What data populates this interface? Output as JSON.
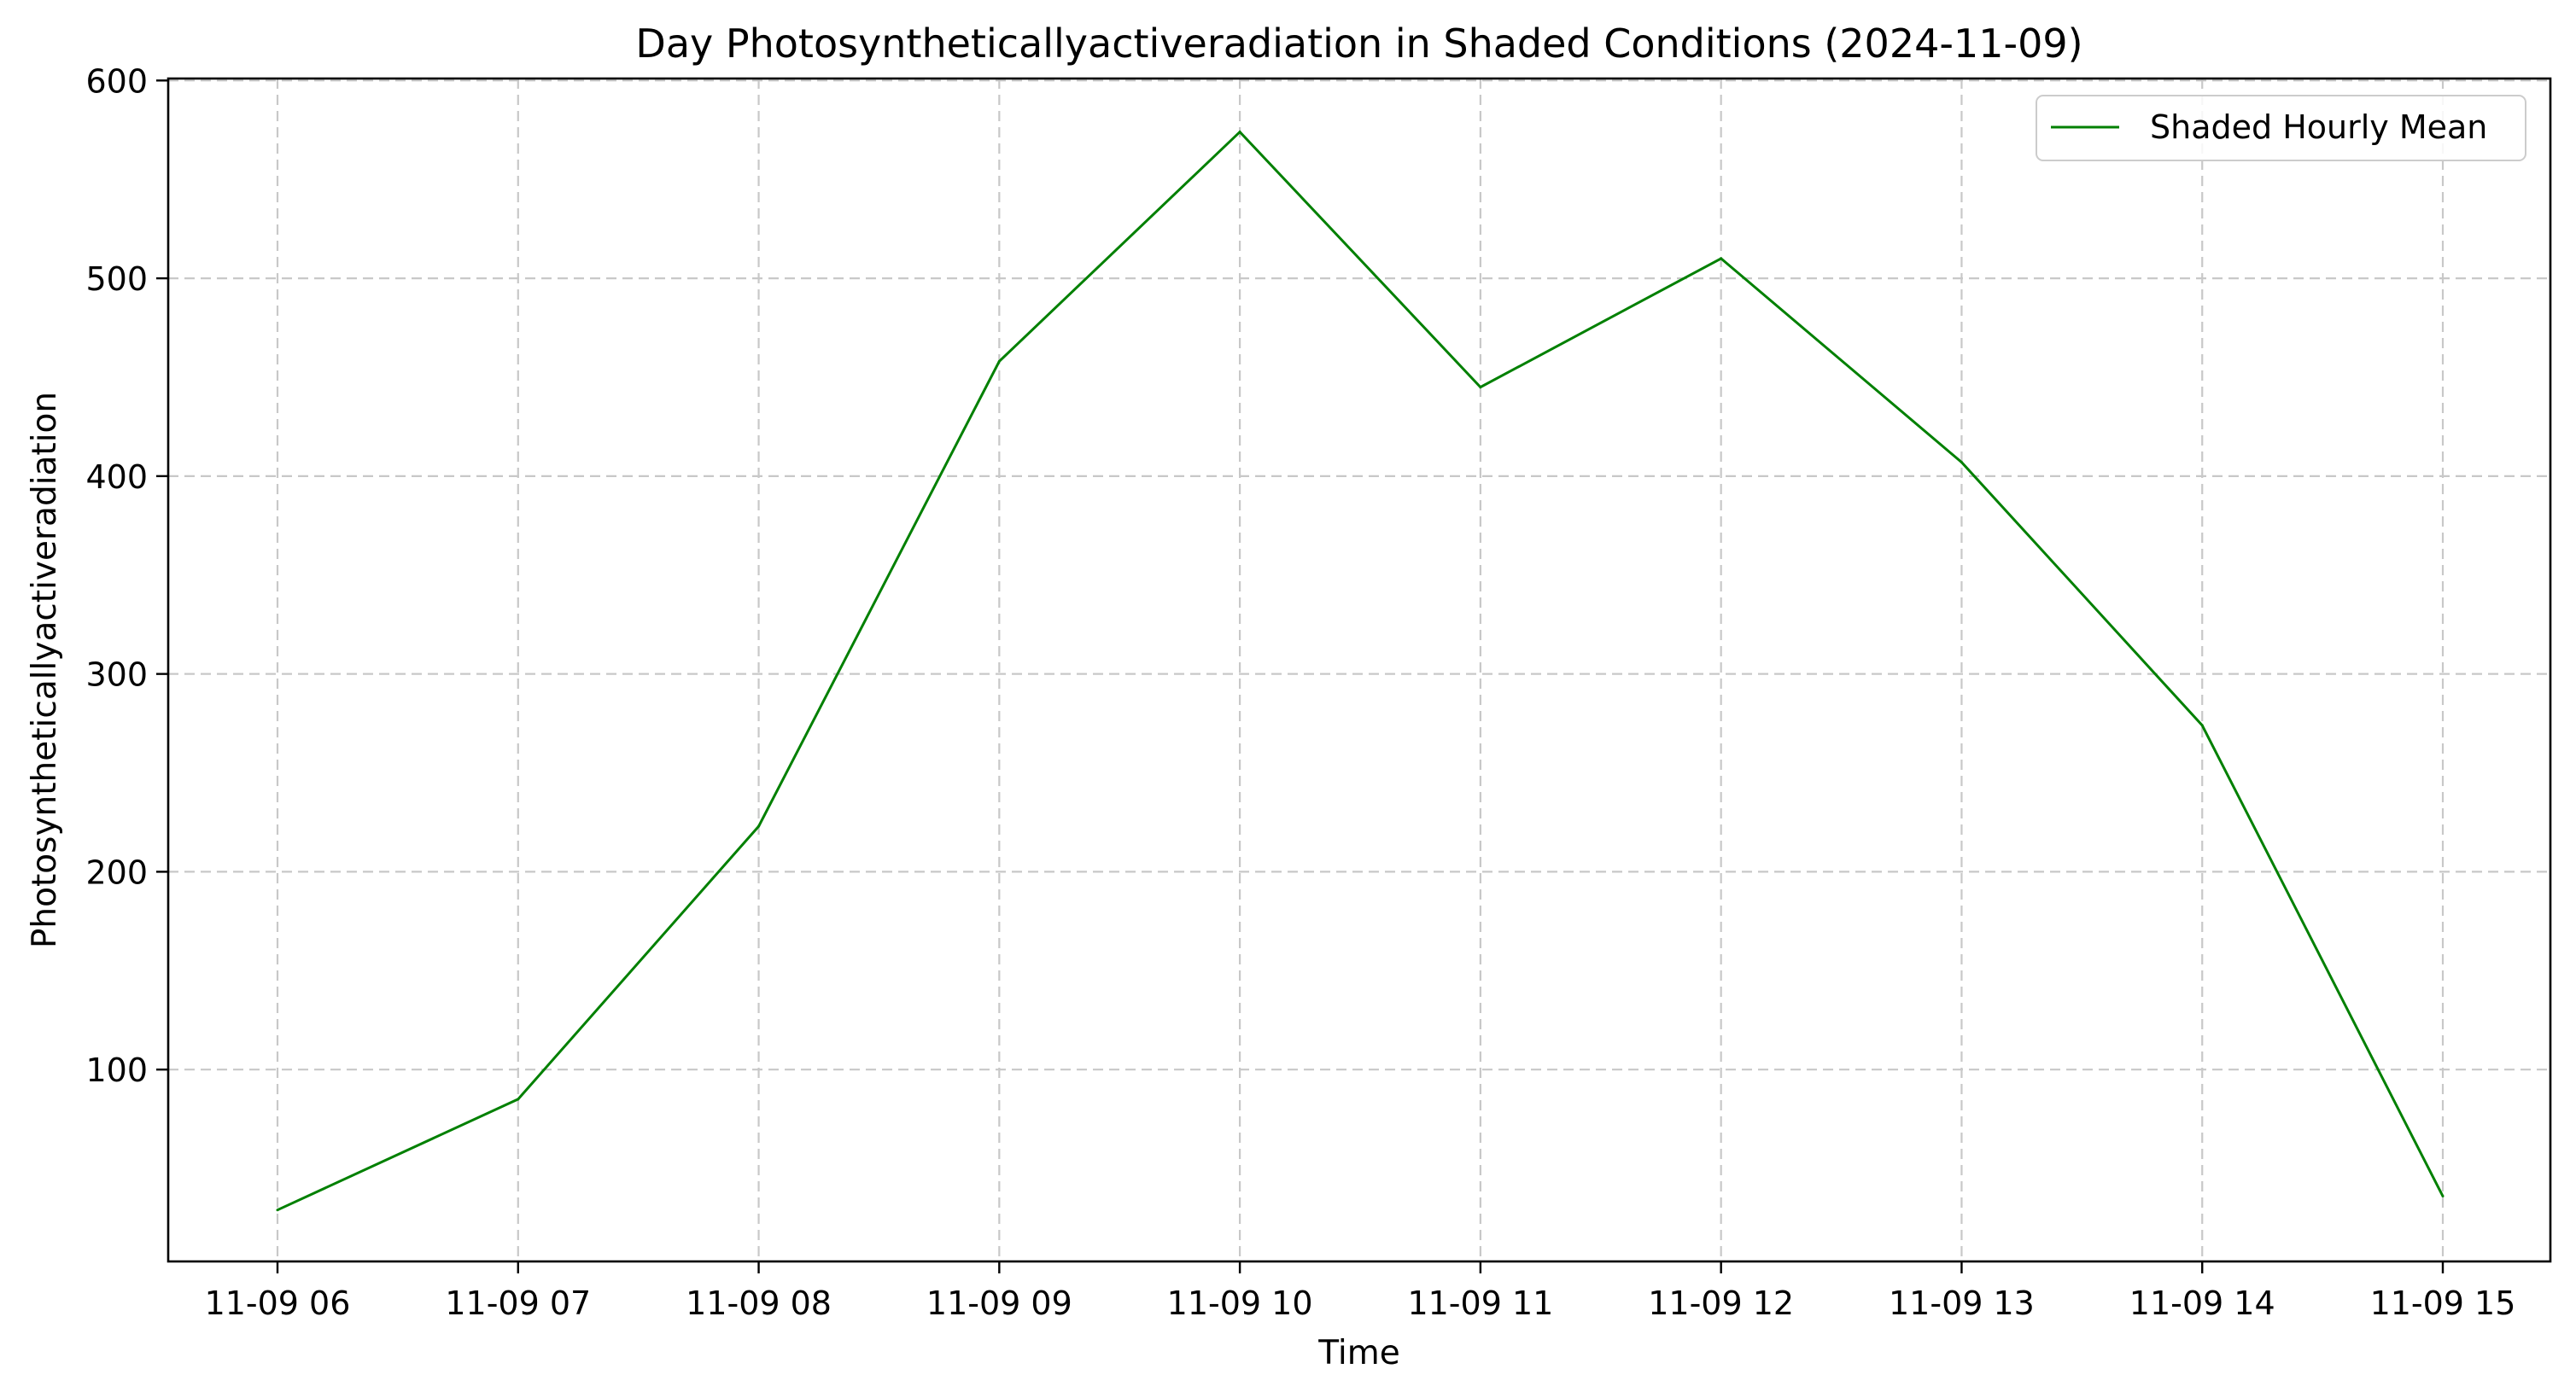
{
  "chart_data": {
    "type": "line",
    "title": "Day Photosyntheticallyactiveradiation in Shaded Conditions (2024-11-09)",
    "xlabel": "Time",
    "ylabel": "Photosyntheticallyactiveradiation",
    "categories": [
      "11-09 06",
      "11-09 07",
      "11-09 08",
      "11-09 09",
      "11-09 10",
      "11-09 11",
      "11-09 12",
      "11-09 13",
      "11-09 14",
      "11-09 15"
    ],
    "series": [
      {
        "name": "Shaded Hourly Mean",
        "color": "#008000",
        "values": [
          29,
          85,
          223,
          458,
          574,
          445,
          510,
          407,
          274,
          36
        ]
      }
    ],
    "ylim": [
      3,
      601
    ],
    "yticks": [
      100,
      200,
      300,
      400,
      500,
      600
    ],
    "grid": true,
    "legend_position": "top-right"
  }
}
